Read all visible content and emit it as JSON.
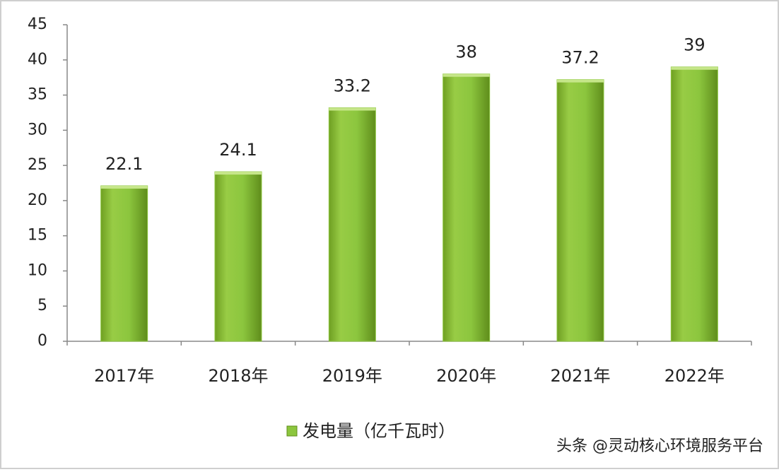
{
  "chart_data": {
    "type": "bar",
    "categories": [
      "2017年",
      "2018年",
      "2019年",
      "2020年",
      "2021年",
      "2022年"
    ],
    "series": [
      {
        "name": "发电量（亿千瓦时）",
        "color": "#8cc63e",
        "values": [
          22.1,
          24.1,
          33.2,
          38,
          37.2,
          39
        ]
      }
    ],
    "ylim": [
      0,
      45
    ],
    "yticks": [
      0,
      5,
      10,
      15,
      20,
      25,
      30,
      35,
      40,
      45
    ],
    "grid": false,
    "legend": "bottom",
    "data_labels": true
  },
  "watermark": "头条 @灵动核心环境服务平台"
}
